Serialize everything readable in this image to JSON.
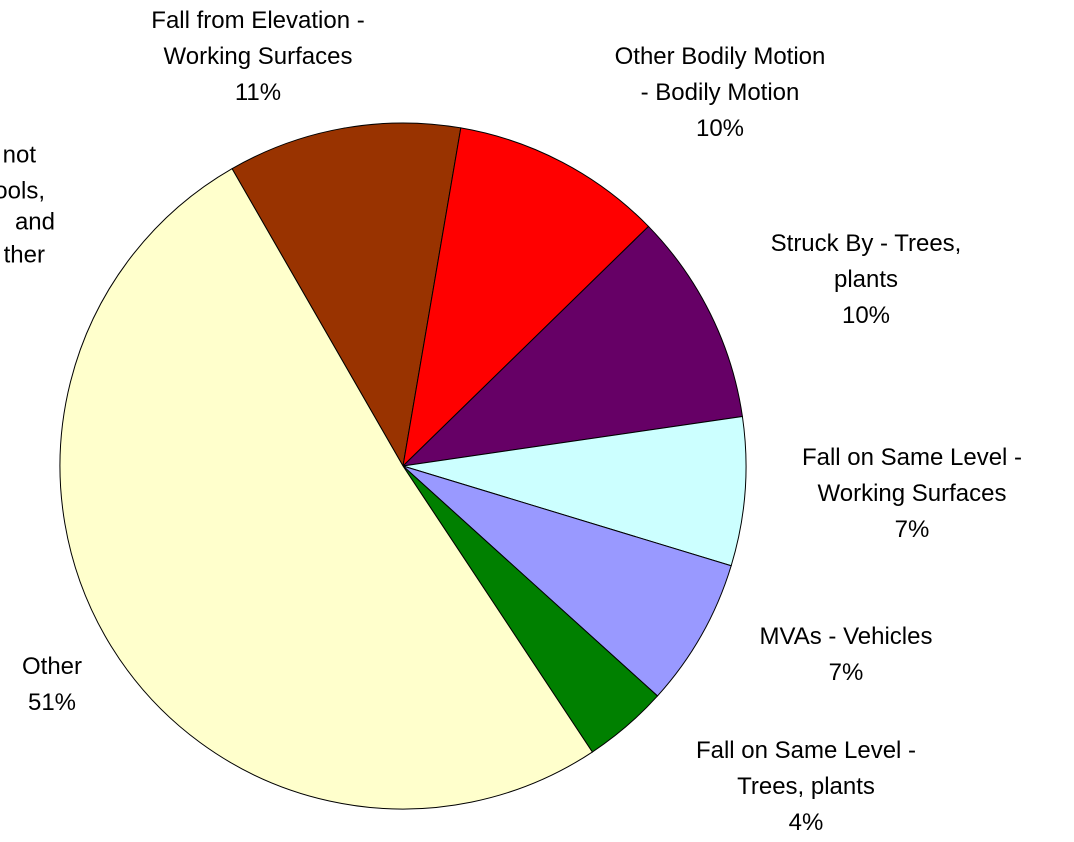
{
  "chart_data": {
    "type": "pie",
    "categories": [
      "Fall from Elevation -\nWorking Surfaces",
      "Other Bodily Motion\n- Bodily Motion",
      "Struck By - Trees,\nplants",
      "Fall on Same Level -\nWorking Surfaces",
      "MVAs - Vehicles",
      "Fall on Same Level -\nTrees, plants",
      "Other"
    ],
    "values": [
      11,
      10,
      10,
      7,
      7,
      4,
      51
    ],
    "value_labels": [
      "11%",
      "10%",
      "10%",
      "7%",
      "7%",
      "4%",
      "51%"
    ],
    "colors": [
      "#993300",
      "#ff0000",
      "#660066",
      "#ccffff",
      "#9999ff",
      "#008000",
      "#ffffcc"
    ],
    "annotation_lines": [
      "not",
      "ools,",
      "and",
      "ther"
    ]
  }
}
